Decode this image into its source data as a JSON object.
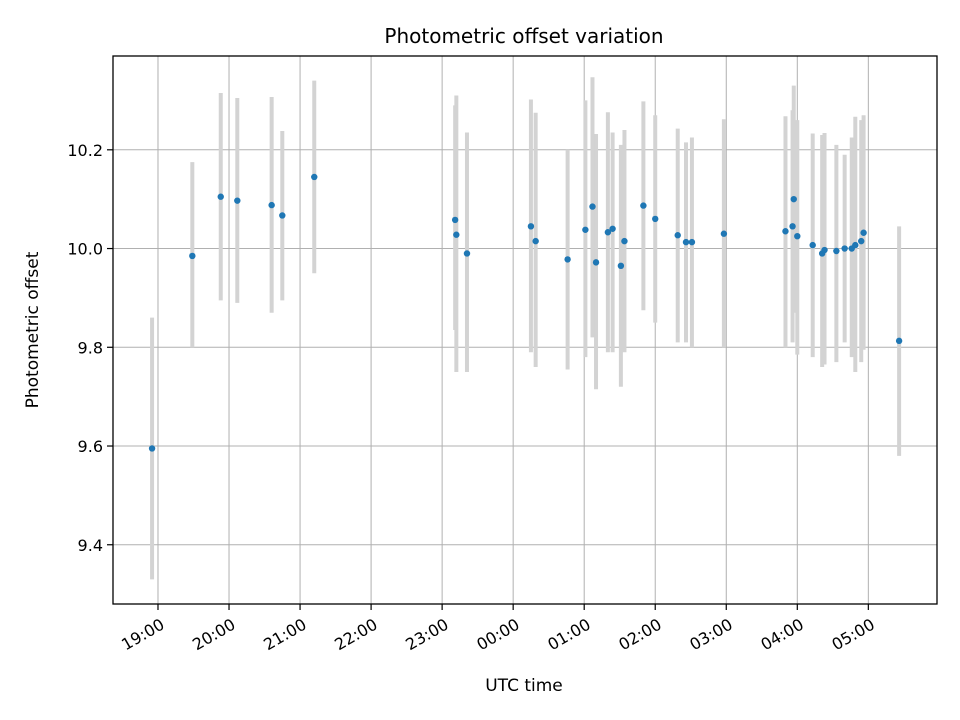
{
  "chart_data": {
    "type": "scatter",
    "title": "Photometric offset variation",
    "xlabel": "UTC time",
    "ylabel": "Photometric offset",
    "x_unit": "UTC time (hours after 00:00 of first day)",
    "xlim": [
      "18:22",
      "05:58"
    ],
    "ylim": [
      9.28,
      10.39
    ],
    "x_ticks": [
      "19:00",
      "20:00",
      "21:00",
      "22:00",
      "23:00",
      "00:00",
      "01:00",
      "02:00",
      "03:00",
      "04:00",
      "05:00"
    ],
    "y_ticks": [
      "9.4",
      "9.6",
      "9.8",
      "10.0",
      "10.2"
    ],
    "grid": true,
    "marker_color": "#1f77b4",
    "errorbar_color": "#d3d3d3",
    "points": [
      {
        "t": "18:55",
        "y": 9.595,
        "lo": 9.33,
        "hi": 9.86
      },
      {
        "t": "19:29",
        "y": 9.985,
        "lo": 9.8,
        "hi": 10.175
      },
      {
        "t": "19:53",
        "y": 10.105,
        "lo": 9.895,
        "hi": 10.315
      },
      {
        "t": "20:07",
        "y": 10.097,
        "lo": 9.89,
        "hi": 10.305
      },
      {
        "t": "20:36",
        "y": 10.088,
        "lo": 9.87,
        "hi": 10.307
      },
      {
        "t": "20:45",
        "y": 10.067,
        "lo": 9.895,
        "hi": 10.238
      },
      {
        "t": "21:12",
        "y": 10.145,
        "lo": 9.95,
        "hi": 10.34
      },
      {
        "t": "23:11",
        "y": 10.058,
        "lo": 9.835,
        "hi": 10.29
      },
      {
        "t": "23:12",
        "y": 10.028,
        "lo": 9.75,
        "hi": 10.31
      },
      {
        "t": "23:21",
        "y": 9.99,
        "lo": 9.75,
        "hi": 10.235
      },
      {
        "t": "00:15",
        "y": 10.045,
        "lo": 9.79,
        "hi": 10.302
      },
      {
        "t": "00:19",
        "y": 10.015,
        "lo": 9.76,
        "hi": 10.275
      },
      {
        "t": "00:46",
        "y": 9.978,
        "lo": 9.755,
        "hi": 10.2
      },
      {
        "t": "01:01",
        "y": 10.038,
        "lo": 9.78,
        "hi": 10.3
      },
      {
        "t": "01:07",
        "y": 10.085,
        "lo": 9.82,
        "hi": 10.347
      },
      {
        "t": "01:10",
        "y": 9.972,
        "lo": 9.715,
        "hi": 10.232
      },
      {
        "t": "01:20",
        "y": 10.033,
        "lo": 9.79,
        "hi": 10.276
      },
      {
        "t": "01:24",
        "y": 10.04,
        "lo": 9.79,
        "hi": 10.235
      },
      {
        "t": "01:31",
        "y": 9.965,
        "lo": 9.72,
        "hi": 10.21
      },
      {
        "t": "01:34",
        "y": 10.015,
        "lo": 9.79,
        "hi": 10.24
      },
      {
        "t": "01:50",
        "y": 10.087,
        "lo": 9.875,
        "hi": 10.298
      },
      {
        "t": "02:00",
        "y": 10.06,
        "lo": 9.85,
        "hi": 10.27
      },
      {
        "t": "02:19",
        "y": 10.027,
        "lo": 9.81,
        "hi": 10.243
      },
      {
        "t": "02:26",
        "y": 10.013,
        "lo": 9.81,
        "hi": 10.215
      },
      {
        "t": "02:31",
        "y": 10.013,
        "lo": 9.8,
        "hi": 10.225
      },
      {
        "t": "02:58",
        "y": 10.03,
        "lo": 9.8,
        "hi": 10.262
      },
      {
        "t": "03:50",
        "y": 10.035,
        "lo": 9.8,
        "hi": 10.268
      },
      {
        "t": "03:56",
        "y": 10.045,
        "lo": 9.81,
        "hi": 10.28
      },
      {
        "t": "03:57",
        "y": 10.1,
        "lo": 9.87,
        "hi": 10.33
      },
      {
        "t": "04:00",
        "y": 10.025,
        "lo": 9.785,
        "hi": 10.26
      },
      {
        "t": "04:13",
        "y": 10.007,
        "lo": 9.78,
        "hi": 10.233
      },
      {
        "t": "04:21",
        "y": 9.99,
        "lo": 9.76,
        "hi": 10.23
      },
      {
        "t": "04:23",
        "y": 9.997,
        "lo": 9.765,
        "hi": 10.234
      },
      {
        "t": "04:33",
        "y": 9.995,
        "lo": 9.77,
        "hi": 10.21
      },
      {
        "t": "04:40",
        "y": 10.0,
        "lo": 9.81,
        "hi": 10.19
      },
      {
        "t": "04:46",
        "y": 10.0,
        "lo": 9.78,
        "hi": 10.225
      },
      {
        "t": "04:49",
        "y": 10.007,
        "lo": 9.75,
        "hi": 10.267
      },
      {
        "t": "04:54",
        "y": 10.015,
        "lo": 9.77,
        "hi": 10.26
      },
      {
        "t": "04:56",
        "y": 10.032,
        "lo": 9.795,
        "hi": 10.27
      },
      {
        "t": "05:26",
        "y": 9.813,
        "lo": 9.58,
        "hi": 10.045
      }
    ]
  }
}
